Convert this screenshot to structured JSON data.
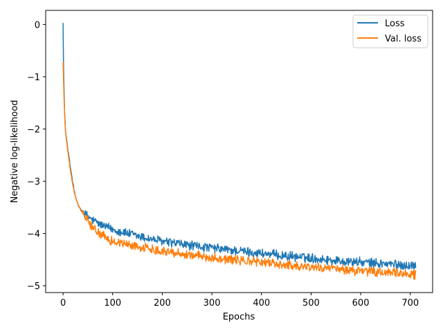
{
  "chart_data": {
    "type": "line",
    "title": "",
    "xlabel": "Epochs",
    "ylabel": "Negative log-likelihood",
    "xlim": [
      -35,
      745
    ],
    "ylim": [
      -5.13,
      0.27
    ],
    "x_ticks": [
      0,
      100,
      200,
      300,
      400,
      500,
      600,
      700
    ],
    "y_ticks": [
      0,
      -1,
      -2,
      -3,
      -4,
      -5
    ],
    "x_tick_labels": [
      "0",
      "100",
      "200",
      "300",
      "400",
      "500",
      "600",
      "700"
    ],
    "y_tick_labels": [
      "0",
      "−1",
      "−2",
      "−3",
      "−4",
      "−5"
    ],
    "grid": false,
    "legend_position": "top-right",
    "epochs": 711,
    "series": [
      {
        "name": "Loss",
        "color": "#1f77b4",
        "anchors": [
          [
            0,
            0.03
          ],
          [
            1,
            -0.8
          ],
          [
            3,
            -1.65
          ],
          [
            5,
            -2.05
          ],
          [
            10,
            -2.4
          ],
          [
            15,
            -2.75
          ],
          [
            20,
            -3.05
          ],
          [
            25,
            -3.3
          ],
          [
            30,
            -3.45
          ],
          [
            40,
            -3.6
          ],
          [
            60,
            -3.75
          ],
          [
            80,
            -3.85
          ],
          [
            100,
            -3.92
          ],
          [
            150,
            -4.05
          ],
          [
            200,
            -4.15
          ],
          [
            250,
            -4.22
          ],
          [
            300,
            -4.28
          ],
          [
            350,
            -4.33
          ],
          [
            400,
            -4.38
          ],
          [
            450,
            -4.43
          ],
          [
            500,
            -4.47
          ],
          [
            550,
            -4.52
          ],
          [
            600,
            -4.55
          ],
          [
            650,
            -4.58
          ],
          [
            711,
            -4.62
          ]
        ],
        "noise": 0.08
      },
      {
        "name": "Val. loss",
        "color": "#ff7f0e",
        "anchors": [
          [
            0,
            -0.72
          ],
          [
            2,
            -1.4
          ],
          [
            4,
            -1.9
          ],
          [
            6,
            -2.15
          ],
          [
            10,
            -2.45
          ],
          [
            15,
            -2.8
          ],
          [
            20,
            -3.1
          ],
          [
            25,
            -3.3
          ],
          [
            30,
            -3.45
          ],
          [
            40,
            -3.62
          ],
          [
            60,
            -3.9
          ],
          [
            80,
            -4.05
          ],
          [
            100,
            -4.15
          ],
          [
            150,
            -4.25
          ],
          [
            200,
            -4.33
          ],
          [
            250,
            -4.4
          ],
          [
            300,
            -4.46
          ],
          [
            350,
            -4.51
          ],
          [
            400,
            -4.55
          ],
          [
            450,
            -4.6
          ],
          [
            500,
            -4.64
          ],
          [
            550,
            -4.68
          ],
          [
            600,
            -4.72
          ],
          [
            650,
            -4.75
          ],
          [
            711,
            -4.78
          ]
        ],
        "noise": 0.08
      }
    ]
  }
}
